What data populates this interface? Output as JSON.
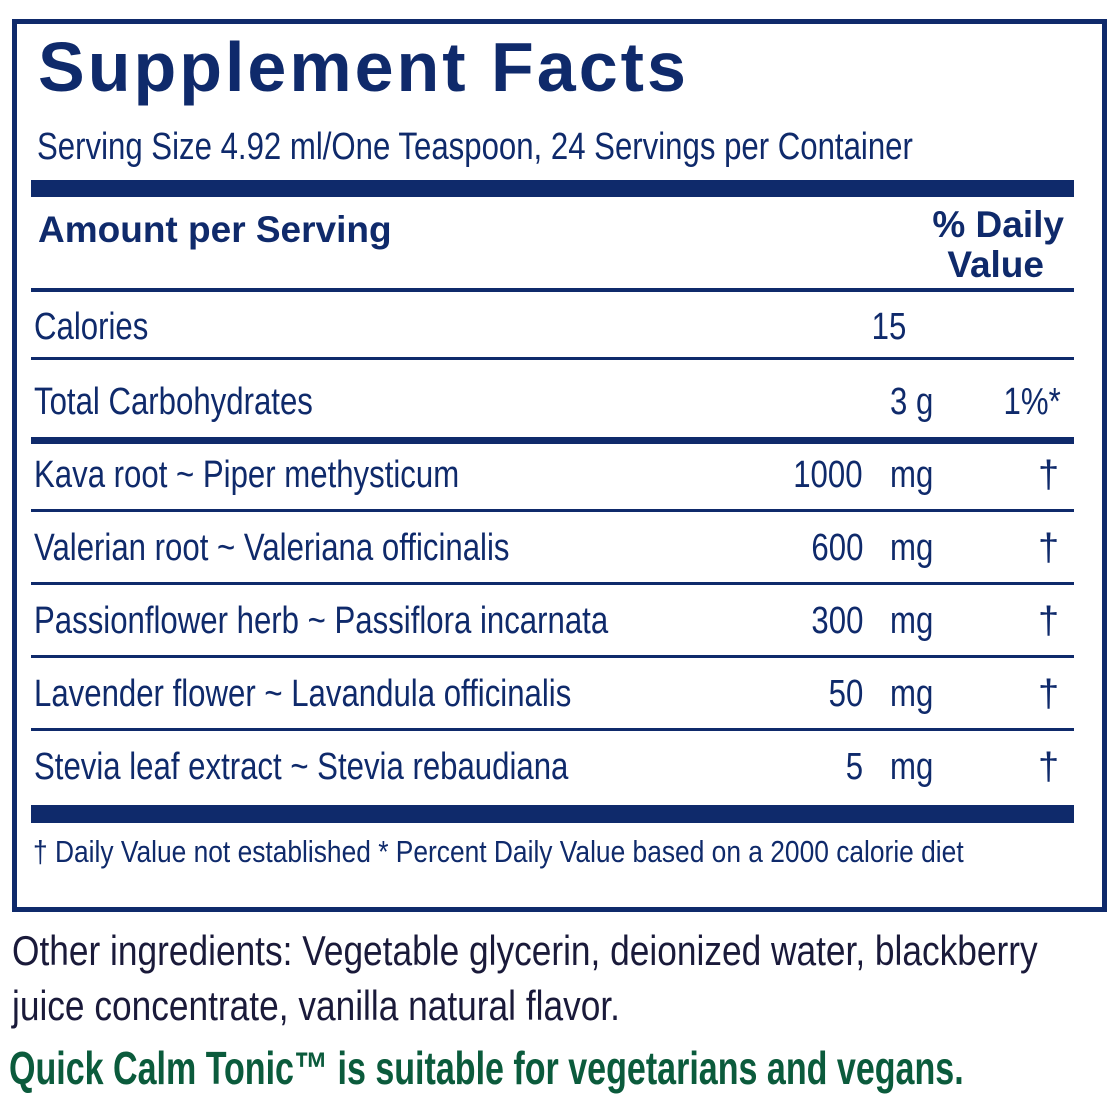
{
  "title": "Supplement Facts",
  "serving": "Serving Size 4.92 ml/One Teaspoon, 24 Servings per Container",
  "header": {
    "amount": "Amount per Serving",
    "dv1": "% Daily",
    "dv2": "Value"
  },
  "calories": {
    "label": "Calories",
    "value": "15"
  },
  "carbs": {
    "label": "Total Carbohydrates",
    "amount": "3 g",
    "dv": "1%*"
  },
  "ingredients": [
    {
      "name": "Kava root ~ Piper methysticum",
      "amount": "1000",
      "unit": "mg",
      "dv": "†"
    },
    {
      "name": "Valerian root ~ Valeriana officinalis",
      "amount": "600",
      "unit": "mg",
      "dv": "†"
    },
    {
      "name": "Passionflower herb ~ Passiflora incarnata",
      "amount": "300",
      "unit": "mg",
      "dv": "†"
    },
    {
      "name": "Lavender flower ~ Lavandula officinalis",
      "amount": "50",
      "unit": "mg",
      "dv": "†"
    },
    {
      "name": "Stevia leaf extract ~ Stevia rebaudiana",
      "amount": "5",
      "unit": "mg",
      "dv": "†"
    }
  ],
  "footnote": "†  Daily Value not established   * Percent Daily Value based on a 2000 calorie diet",
  "other1": "Other ingredients: Vegetable glycerin, deionized water, blackberry",
  "other2": "juice concentrate, vanilla natural flavor.",
  "vegan": "Quick Calm Tonic™ is suitable for vegetarians and vegans.",
  "colors": {
    "navy": "#0f2a6b",
    "green": "#0b5b3c"
  }
}
